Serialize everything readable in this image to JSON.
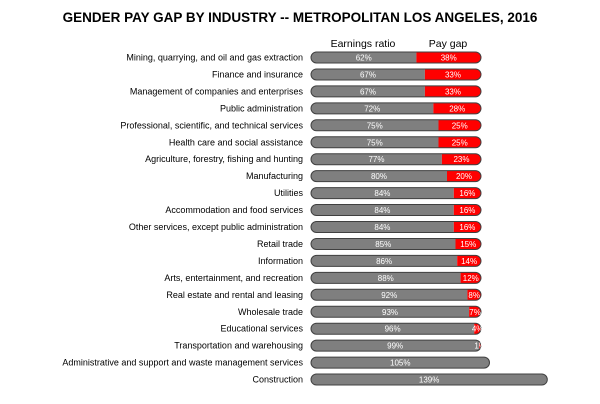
{
  "chart_data": {
    "type": "bar",
    "orientation": "horizontal",
    "stacked": true,
    "title": "GENDER PAY GAP BY INDUSTRY -- METROPOLITAN LOS ANGELES, 2016",
    "column_headers": [
      "Earnings ratio",
      "Pay gap"
    ],
    "value_suffix": "%",
    "colors": {
      "earnings": "#7f7f7f",
      "gap": "#ff0000",
      "outline": "#404040"
    },
    "categories": [
      "Mining, quarrying, and oil and gas extraction",
      "Finance and insurance",
      "Management of companies and enterprises",
      "Public administration",
      "Professional, scientific, and technical services",
      "Health care and social assistance",
      "Agriculture, forestry, fishing and hunting",
      "Manufacturing",
      "Utilities",
      "Accommodation and food services",
      "Other services, except public administration",
      "Retail trade",
      "Information",
      "Arts, entertainment, and recreation",
      "Real estate and rental and leasing",
      "Wholesale trade",
      "Educational services",
      "Transportation and warehousing",
      "Administrative and support and waste management services",
      "Construction"
    ],
    "series": [
      {
        "name": "Earnings ratio",
        "values": [
          62,
          67,
          67,
          72,
          75,
          75,
          77,
          80,
          84,
          84,
          84,
          85,
          86,
          88,
          92,
          93,
          96,
          99,
          105,
          139
        ]
      },
      {
        "name": "Pay gap",
        "values": [
          38,
          33,
          33,
          28,
          25,
          25,
          23,
          20,
          16,
          16,
          16,
          15,
          14,
          12,
          8,
          7,
          4,
          1,
          null,
          null
        ]
      }
    ],
    "xlim": [
      0,
      139
    ],
    "grid": false,
    "legend": "top"
  }
}
